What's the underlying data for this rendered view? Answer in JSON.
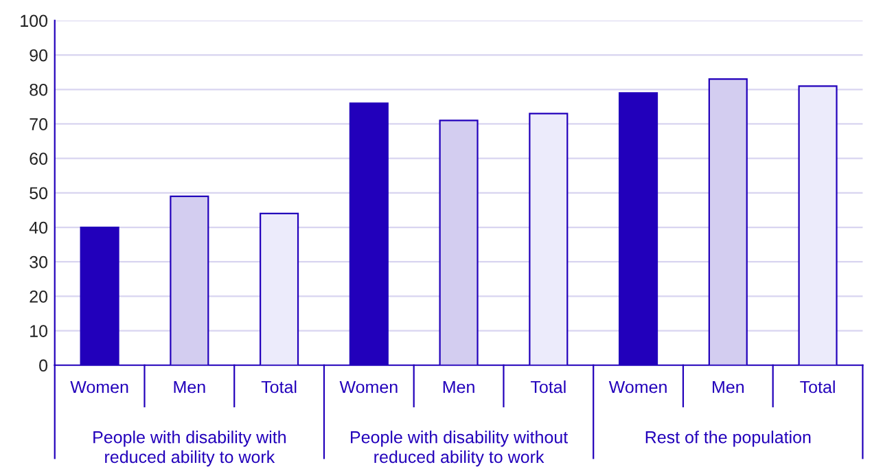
{
  "chart_data": {
    "type": "bar",
    "categories": [
      "Women",
      "Men",
      "Total",
      "Women",
      "Men",
      "Total",
      "Women",
      "Men",
      "Total"
    ],
    "values": [
      40,
      49,
      44,
      76,
      71,
      73,
      79,
      83,
      81
    ],
    "colors": [
      "#2200bb",
      "#d3cdf0",
      "#ecebfb",
      "#2200bb",
      "#d3cdf0",
      "#ecebfb",
      "#2200bb",
      "#d3cdf0",
      "#ecebfb"
    ],
    "annotations": [
      "People with disability with\nreduced ability to work",
      "People with disability without\nreduced ability to work",
      "Rest of the population"
    ],
    "ylim": [
      0,
      100
    ],
    "yticks": [
      0,
      10,
      20,
      30,
      40,
      50,
      60,
      70,
      80,
      90,
      100
    ],
    "grid": "y"
  }
}
